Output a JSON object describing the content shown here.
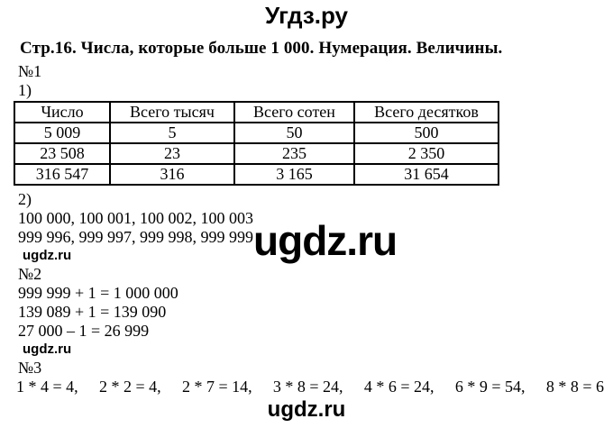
{
  "site_title": "Угдз.ру",
  "page_heading": "Стр.16. Числа, которые больше 1 000. Нумерация. Величины.",
  "watermarks": {
    "small": "ugdz.ru",
    "large": "ugdz.ru",
    "bottom": "ugdz.ru"
  },
  "task1": {
    "label": "№1",
    "part1_label": "1)",
    "table": {
      "headers": [
        "Число",
        "Всего тысяч",
        "Всего сотен",
        "Всего десятков"
      ],
      "rows": [
        [
          "5 009",
          "5",
          "50",
          "500"
        ],
        [
          "23 508",
          "23",
          "235",
          "2 350"
        ],
        [
          "316 547",
          "316",
          "3 165",
          "31 654"
        ]
      ]
    },
    "part2_label": "2)",
    "part2_lines": [
      "100 000, 100 001, 100 002, 100 003",
      "999 996, 999 997, 999 998, 999 999"
    ]
  },
  "task2": {
    "label": "№2",
    "lines": [
      "999 999 + 1 = 1 000 000",
      "139 089 + 1 = 139 090",
      "27 000 – 1 = 26 999"
    ]
  },
  "task3": {
    "label": "№3",
    "equations": [
      "1 * 4 = 4,",
      "2 * 2 = 4,",
      "2 * 7 = 14,",
      "3 * 8 = 24,",
      "4 * 6 = 24,",
      "6 * 9 = 54,",
      "8 * 8 = 6"
    ]
  }
}
